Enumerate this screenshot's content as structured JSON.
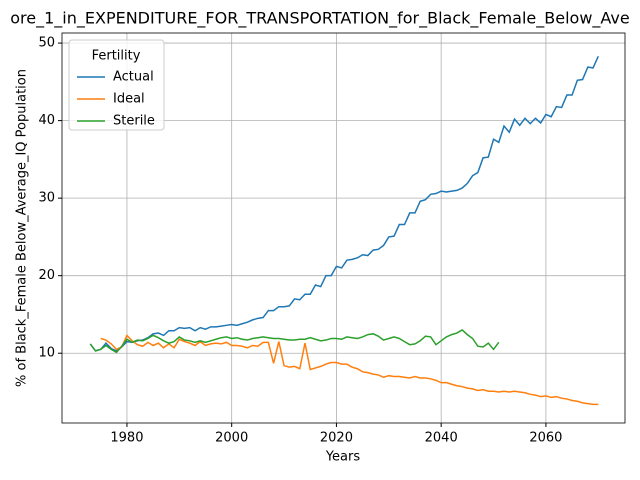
{
  "chart_data": {
    "type": "line",
    "title": "ore_1_in_EXPENDITURE_FOR_TRANSPORTATION_for_Black_Female_Below_Ave",
    "xlabel": "Years",
    "ylabel": "% of Black_Female Below_Average_IQ Population",
    "legend_title": "Fertility",
    "legend": "upper left",
    "grid": true,
    "xlim": [
      1967.6,
      2075.1
    ],
    "ylim": [
      1.0,
      51.3
    ],
    "xticks": [
      1980,
      2000,
      2020,
      2040,
      2060
    ],
    "yticks": [
      10,
      20,
      30,
      40,
      50
    ],
    "x": [
      1973,
      1974,
      1975,
      1976,
      1977,
      1978,
      1979,
      1980,
      1981,
      1982,
      1983,
      1984,
      1985,
      1986,
      1987,
      1988,
      1989,
      1990,
      1991,
      1992,
      1993,
      1994,
      1995,
      1996,
      1997,
      1998,
      1999,
      2000,
      2001,
      2002,
      2003,
      2004,
      2005,
      2006,
      2007,
      2008,
      2009,
      2010,
      2011,
      2012,
      2013,
      2014,
      2015,
      2016,
      2017,
      2018,
      2019,
      2020,
      2021,
      2022,
      2023,
      2024,
      2025,
      2026,
      2027,
      2028,
      2029,
      2030,
      2031,
      2032,
      2033,
      2034,
      2035,
      2036,
      2037,
      2038,
      2039,
      2040,
      2041,
      2042,
      2043,
      2044,
      2045,
      2046,
      2047,
      2048,
      2049,
      2050,
      2051,
      2052,
      2053,
      2054,
      2055,
      2056,
      2057,
      2058,
      2059,
      2060,
      2061,
      2062,
      2063,
      2064,
      2065,
      2066,
      2067,
      2068,
      2069,
      2070
    ],
    "series": [
      {
        "name": "Actual",
        "color": "#1f77b4",
        "values": [
          11.2,
          10.3,
          10.5,
          11.3,
          10.6,
          10.3,
          10.8,
          11.5,
          11.4,
          11.6,
          11.7,
          12.0,
          12.5,
          12.6,
          12.3,
          12.9,
          12.9,
          13.3,
          13.2,
          13.3,
          12.9,
          13.3,
          13.1,
          13.4,
          13.4,
          13.5,
          13.6,
          13.7,
          13.6,
          13.8,
          14.0,
          14.3,
          14.5,
          14.6,
          15.5,
          15.5,
          16.0,
          16.0,
          16.1,
          17.0,
          16.9,
          17.6,
          17.6,
          18.8,
          18.6,
          20.0,
          20.0,
          21.2,
          21.0,
          22.0,
          22.1,
          22.3,
          22.7,
          22.6,
          23.3,
          23.4,
          23.9,
          25.0,
          25.1,
          26.6,
          26.6,
          28.1,
          28.1,
          29.6,
          29.8,
          30.5,
          30.6,
          30.9,
          30.8,
          30.9,
          31.0,
          31.3,
          31.9,
          32.9,
          33.3,
          35.2,
          35.3,
          37.6,
          37.2,
          39.3,
          38.5,
          40.2,
          39.4,
          40.3,
          39.6,
          40.3,
          39.7,
          40.8,
          40.5,
          41.8,
          41.7,
          43.3,
          43.3,
          45.2,
          45.3,
          46.9,
          46.8,
          48.3
        ]
      },
      {
        "name": "Ideal",
        "color": "#ff7f0e",
        "values": [
          null,
          null,
          11.9,
          11.7,
          11.2,
          10.5,
          10.8,
          12.3,
          11.6,
          11.1,
          10.9,
          11.4,
          11.0,
          11.3,
          10.7,
          11.2,
          10.7,
          11.8,
          11.5,
          11.3,
          11.0,
          11.5,
          11.0,
          11.2,
          11.3,
          11.2,
          11.4,
          11.0,
          11.0,
          10.9,
          10.7,
          11.0,
          10.9,
          11.4,
          11.4,
          8.7,
          11.5,
          8.4,
          8.2,
          8.3,
          8.0,
          11.3,
          7.9,
          8.1,
          8.3,
          8.6,
          8.8,
          8.8,
          8.6,
          8.6,
          8.2,
          8.0,
          7.6,
          7.5,
          7.3,
          7.2,
          6.9,
          7.1,
          7.0,
          7.0,
          6.9,
          6.8,
          7.0,
          6.8,
          6.8,
          6.7,
          6.5,
          6.2,
          6.2,
          6.0,
          5.8,
          5.7,
          5.5,
          5.4,
          5.2,
          5.3,
          5.1,
          5.1,
          5.0,
          5.1,
          5.0,
          5.1,
          5.0,
          4.9,
          4.7,
          4.6,
          4.4,
          4.5,
          4.3,
          4.4,
          4.2,
          4.1,
          3.9,
          3.8,
          3.6,
          3.5,
          3.4,
          3.4
        ]
      },
      {
        "name": "Sterile",
        "color": "#2ca02c",
        "values": [
          11.2,
          10.3,
          10.5,
          11.0,
          10.5,
          10.1,
          10.9,
          11.8,
          11.4,
          11.7,
          11.6,
          11.9,
          12.3,
          12.0,
          11.6,
          11.3,
          11.5,
          12.1,
          11.7,
          11.6,
          11.4,
          11.6,
          11.4,
          11.6,
          11.8,
          12.0,
          12.1,
          11.9,
          12.0,
          11.8,
          11.7,
          11.9,
          12.0,
          12.1,
          12.0,
          11.9,
          11.9,
          11.8,
          11.7,
          11.7,
          11.8,
          11.8,
          12.0,
          11.8,
          11.6,
          11.7,
          11.9,
          11.9,
          11.8,
          12.1,
          12.0,
          11.9,
          12.1,
          12.4,
          12.5,
          12.2,
          11.7,
          11.9,
          12.1,
          11.9,
          11.5,
          11.1,
          11.2,
          11.6,
          12.2,
          12.1,
          11.1,
          11.6,
          12.1,
          12.4,
          12.6,
          13.0,
          12.4,
          11.9,
          10.9,
          10.8,
          11.3,
          10.5,
          11.4,
          null,
          null,
          null,
          null,
          null,
          null,
          null,
          null,
          null,
          null,
          null,
          null,
          null,
          null,
          null,
          null,
          null,
          null,
          null
        ]
      }
    ]
  }
}
